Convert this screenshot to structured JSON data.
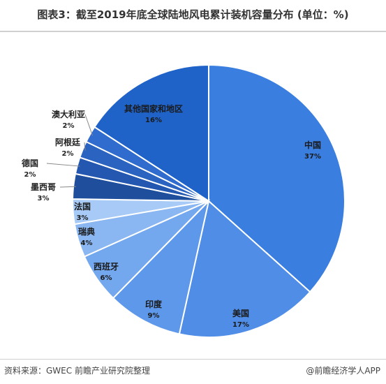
{
  "title": "图表3：截至2019年底全球陆地风电累计装机容量分布 (单位：%)",
  "source": "资料来源：GWEC 前瞻产业研究院整理",
  "credit": "@前瞻经济学人APP",
  "watermark": "前瞻产业研究院",
  "chart_data": {
    "type": "pie",
    "title": "图表3：截至2019年底全球陆地风电累计装机容量分布 (单位：%)",
    "unit": "%",
    "slices": [
      {
        "label": "中国",
        "value": 37,
        "display": "37%",
        "color": "#3a7ee0"
      },
      {
        "label": "美国",
        "value": 17,
        "display": "17%",
        "color": "#4f8de6"
      },
      {
        "label": "印度",
        "value": 9,
        "display": "9%",
        "color": "#5e98ea"
      },
      {
        "label": "西班牙",
        "value": 6,
        "display": "6%",
        "color": "#74a8ee"
      },
      {
        "label": "瑞典",
        "value": 4,
        "display": "4%",
        "color": "#8ab7f2"
      },
      {
        "label": "法国",
        "value": 3,
        "display": "3%",
        "color": "#a7cbf6"
      },
      {
        "label": "墨西哥",
        "value": 3,
        "display": "3%",
        "color": "#1e4e9c"
      },
      {
        "label": "德国",
        "value": 2,
        "display": "2%",
        "color": "#2458b0"
      },
      {
        "label": "阿根廷",
        "value": 2,
        "display": "2%",
        "color": "#2a63c0"
      },
      {
        "label": "澳大利亚",
        "value": 2,
        "display": "2%",
        "color": "#2f6ccd"
      },
      {
        "label": "其他国家和地区",
        "value": 16,
        "display": "16%",
        "color": "#1f63c9"
      }
    ]
  }
}
